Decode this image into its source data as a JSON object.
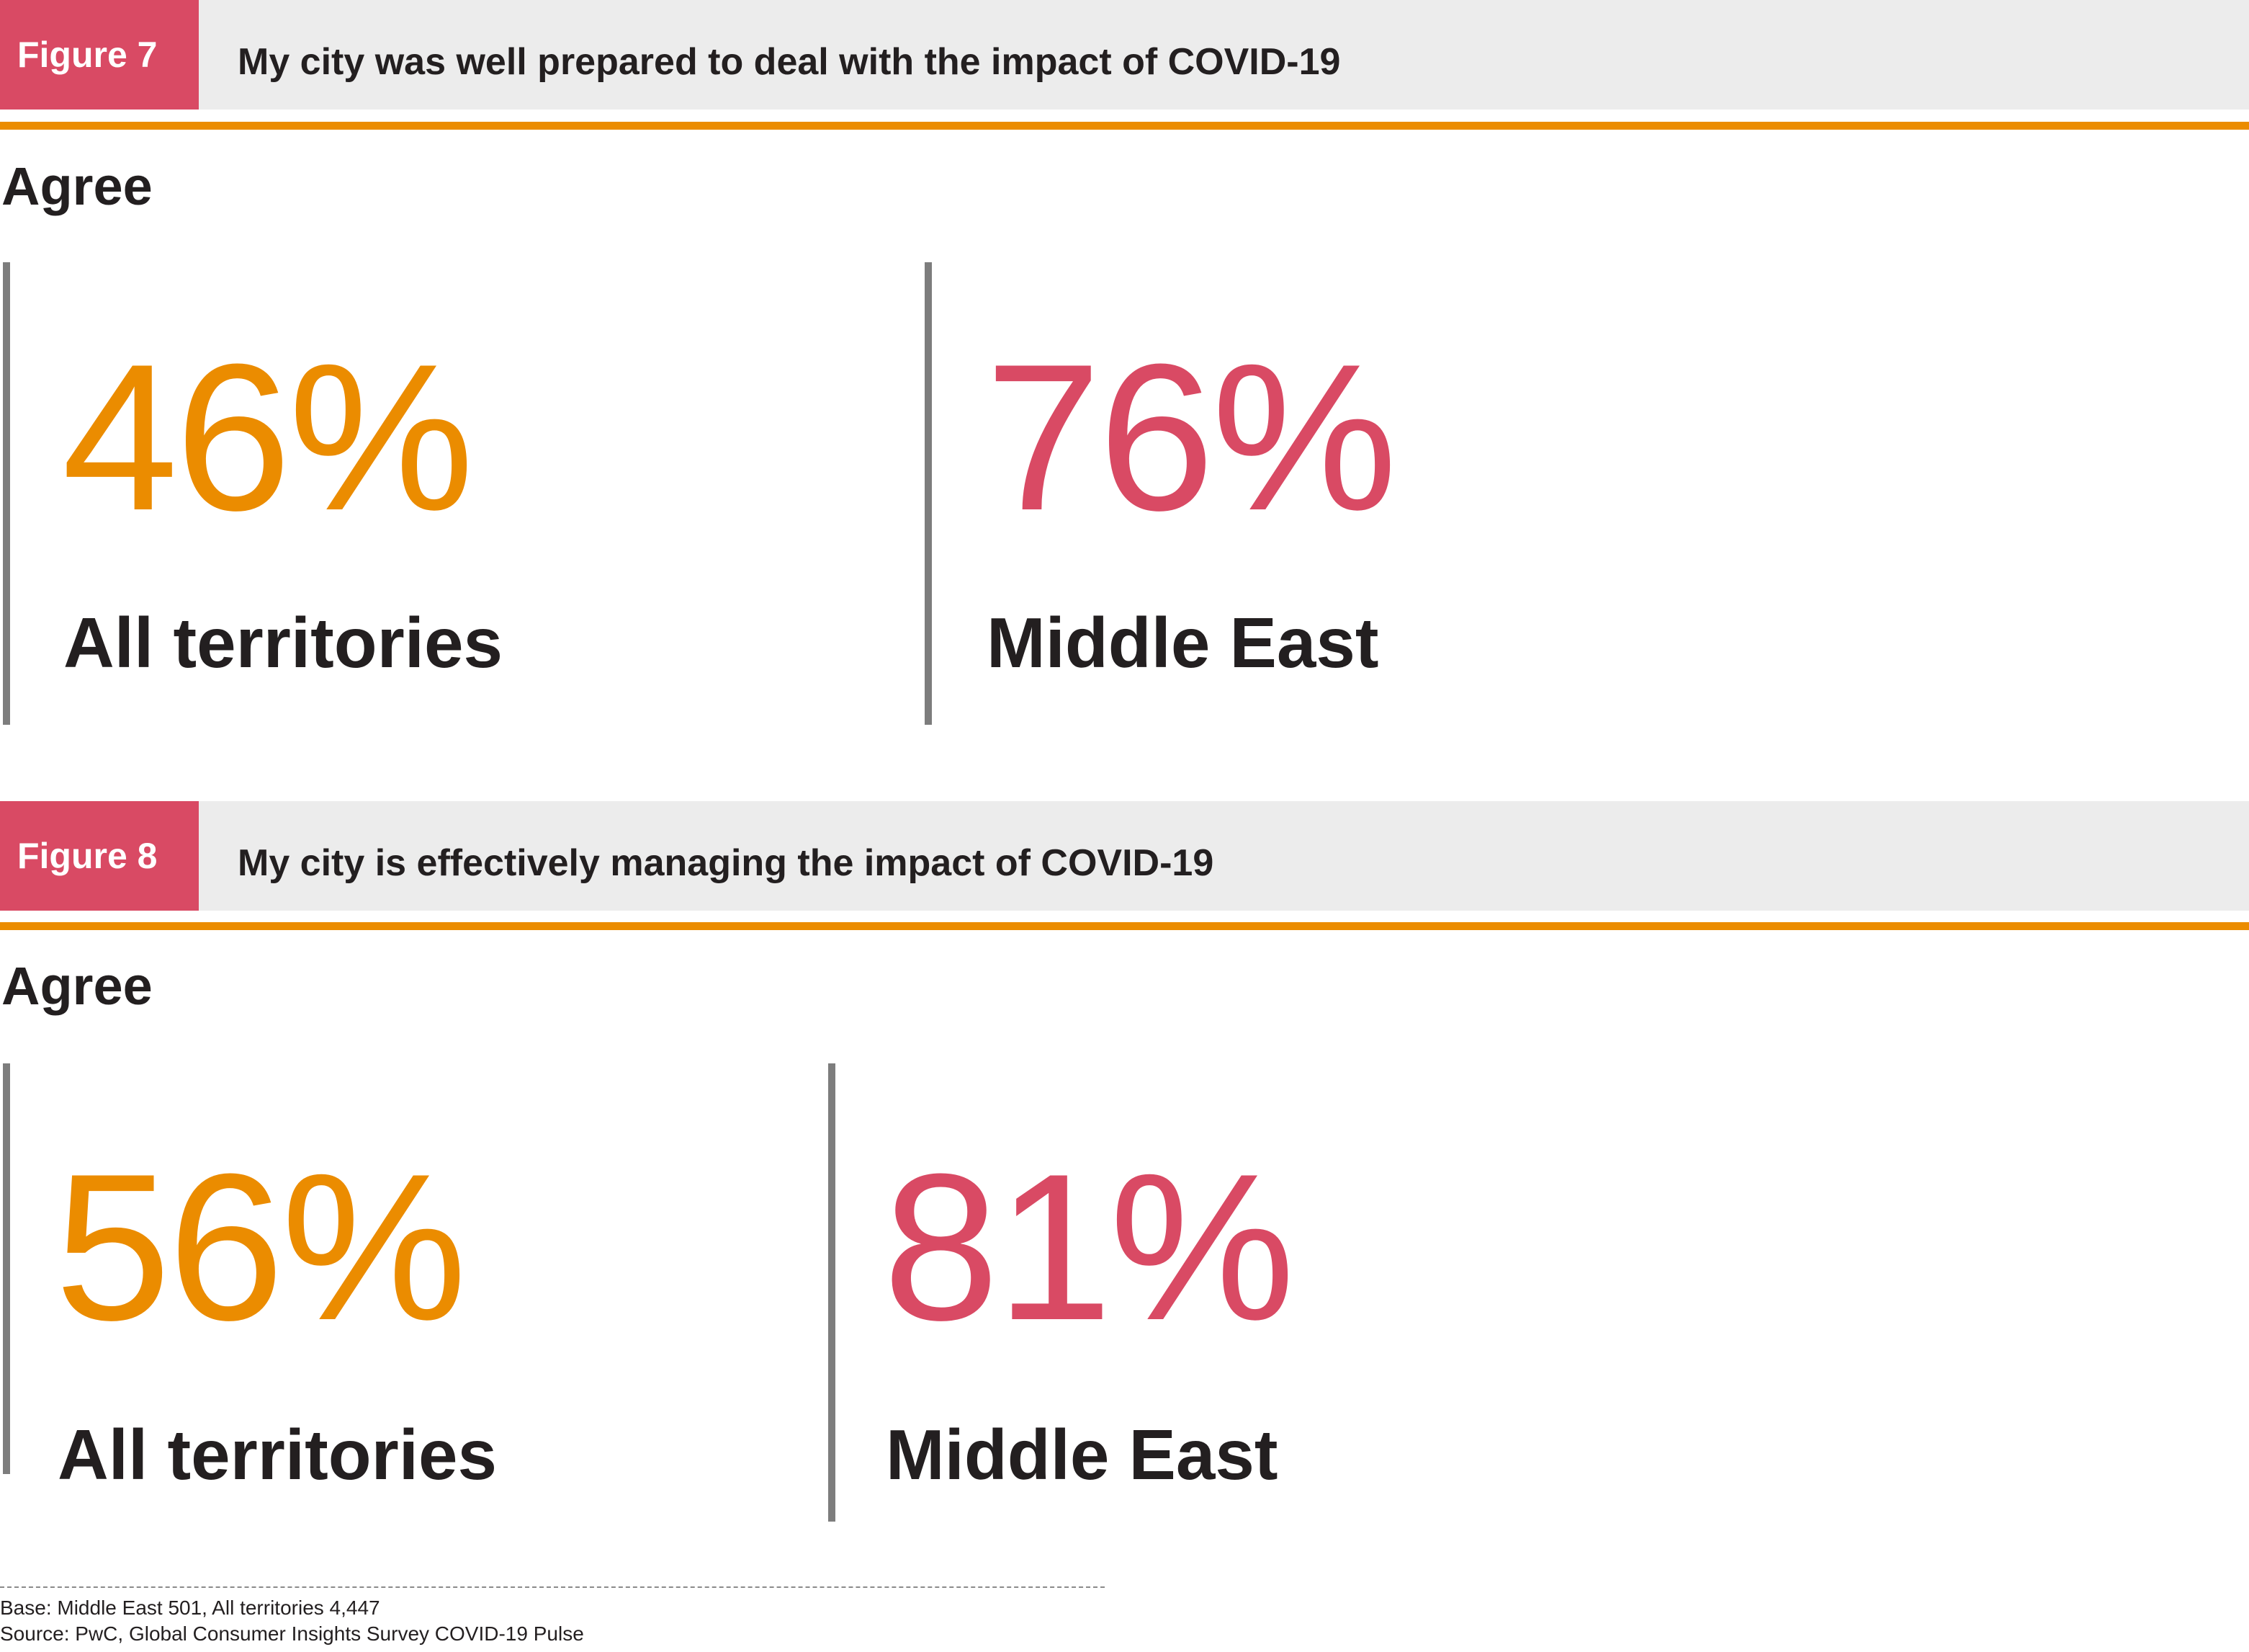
{
  "colors": {
    "accent_pink": "#d94a64",
    "accent_orange": "#eb8c00",
    "header_bg": "#ececec",
    "divider": "#7d7d7d"
  },
  "figures": [
    {
      "label": "Figure 7",
      "title": "My city was well prepared to deal with the impact of COVID-19",
      "subtitle": "Agree",
      "stats": [
        {
          "value": "46%",
          "label": "All territories"
        },
        {
          "value": "76%",
          "label": "Middle East"
        }
      ]
    },
    {
      "label": "Figure 8",
      "title": "My city is effectively managing the impact of COVID-19",
      "subtitle": "Agree",
      "stats": [
        {
          "value": "56%",
          "label": "All territories"
        },
        {
          "value": "81%",
          "label": "Middle East"
        }
      ]
    }
  ],
  "footer": {
    "base": "Base: Middle East 501, All territories 4,447",
    "source": "Source: PwC, Global Consumer Insights Survey COVID-19 Pulse"
  },
  "chart_data": [
    {
      "type": "bar",
      "title": "My city was well prepared to deal with the impact of COVID-19",
      "categories": [
        "All territories",
        "Middle East"
      ],
      "values": [
        46,
        76
      ],
      "unit": "%",
      "ylabel": "Agree"
    },
    {
      "type": "bar",
      "title": "My city is effectively managing the impact of COVID-19",
      "categories": [
        "All territories",
        "Middle East"
      ],
      "values": [
        56,
        81
      ],
      "unit": "%",
      "ylabel": "Agree"
    }
  ]
}
